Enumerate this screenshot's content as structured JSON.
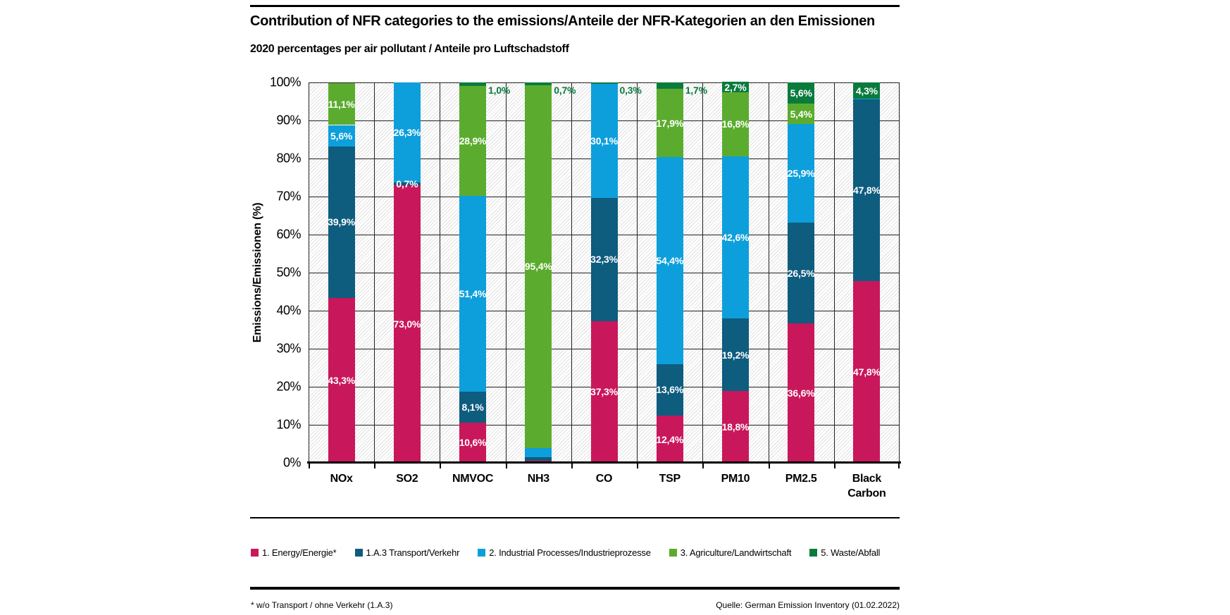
{
  "header": {
    "title": "Contribution of NFR categories to the emissions/Anteile der NFR-Kategorien an den Emissionen",
    "subtitle": "2020 percentages per air pollutant / Anteile pro Luftschadstoff"
  },
  "chart_data": {
    "type": "bar",
    "stacked": true,
    "title": "Contribution of NFR categories to the emissions/Anteile der NFR-Kategorien an den Emissionen",
    "subtitle": "2020 percentages per air pollutant / Anteile pro Luftschadstoff",
    "ylabel": "Emissions/Emissionen (%)",
    "ylim": [
      0,
      100
    ],
    "yticks": [
      "0%",
      "10%",
      "20%",
      "30%",
      "40%",
      "50%",
      "60%",
      "70%",
      "80%",
      "90%",
      "100%"
    ],
    "grid": true,
    "background": "diagonal-hatch",
    "legend_position": "bottom",
    "outside_label_color": "#0A7B3D",
    "categories": [
      "NOx",
      "SO2",
      "NMVOC",
      "NH3",
      "CO",
      "TSP",
      "PM10",
      "PM2.5",
      "Black Carbon"
    ],
    "series": [
      {
        "name": "1. Energy/Energie*",
        "color": "#C9175B",
        "values": [
          43.3,
          73.0,
          10.6,
          0.5,
          37.3,
          12.4,
          18.8,
          36.6,
          47.8
        ],
        "labels": [
          "43,3%",
          "73,0%",
          "10,6%",
          "",
          "37,3%",
          "12,4%",
          "18,8%",
          "36,6%",
          "47,8%"
        ],
        "label_pos": [
          "in",
          "in",
          "in",
          "",
          "in",
          "in",
          "in",
          "in",
          "in"
        ]
      },
      {
        "name": "1.A.3 Transport/Verkehr",
        "color": "#0E5C7E",
        "values": [
          39.9,
          0.7,
          8.1,
          1.0,
          32.3,
          13.6,
          19.2,
          26.5,
          47.8
        ],
        "labels": [
          "39,9%",
          "0,7%",
          "8,1%",
          "",
          "32,3%",
          "13,6%",
          "19,2%",
          "26,5%",
          "47,8%"
        ],
        "label_pos": [
          "in",
          "in",
          "in",
          "",
          "in",
          "in",
          "in",
          "in",
          "in"
        ]
      },
      {
        "name": "2. Industrial Processes/Industrieprozesse",
        "color": "#0D9FDB",
        "values": [
          5.6,
          26.3,
          51.4,
          2.4,
          30.1,
          54.4,
          42.6,
          25.9,
          0.1
        ],
        "labels": [
          "5,6%",
          "26,3%",
          "51,4%",
          "",
          "30,1%",
          "54,4%",
          "42,6%",
          "25,9%",
          ""
        ],
        "label_pos": [
          "in",
          "in",
          "in",
          "",
          "in",
          "in",
          "in",
          "in",
          ""
        ]
      },
      {
        "name": "3. Agriculture/Landwirtschaft",
        "color": "#5BAC2E",
        "values": [
          11.1,
          0,
          28.9,
          95.4,
          0,
          17.9,
          16.8,
          5.4,
          0
        ],
        "labels": [
          "11,1%",
          "",
          "28,9%",
          "95,4%",
          "",
          "17,9%",
          "16,8%",
          "5,4%",
          ""
        ],
        "label_pos": [
          "in",
          "",
          "in",
          "in",
          "",
          "in",
          "in",
          "in",
          ""
        ]
      },
      {
        "name": "5. Waste/Abfall",
        "color": "#0A7B3D",
        "values": [
          0,
          0,
          1.0,
          0.7,
          0.3,
          1.7,
          2.7,
          5.6,
          4.3
        ],
        "labels": [
          "",
          "",
          "1,0%",
          "0,7%",
          "0,3%",
          "1,7%",
          "2,7%",
          "5,6%",
          "4,3%"
        ],
        "label_pos": [
          "",
          "",
          "out",
          "out",
          "out",
          "out",
          "in",
          "in",
          "in"
        ]
      }
    ]
  },
  "footer": {
    "footnote": "* w/o Transport / ohne Verkehr (1.A.3)",
    "source": "Quelle: German Emission Inventory (01.02.2022)"
  }
}
